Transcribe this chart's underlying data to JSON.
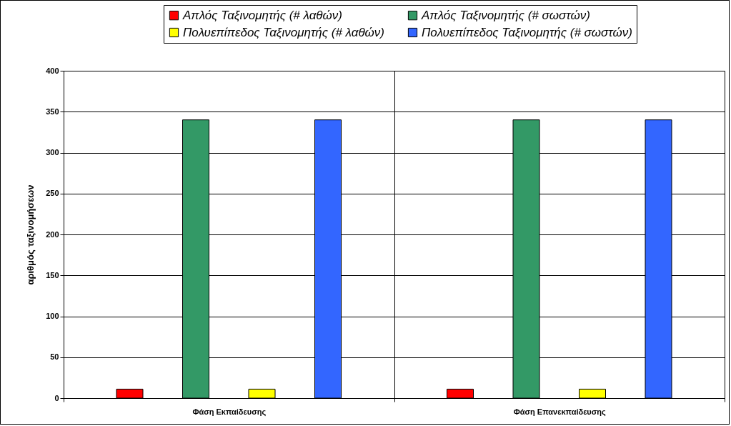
{
  "chart_data": {
    "type": "bar",
    "ylabel": "αριθμός ταξινομήσεων",
    "categories": [
      "Φάση Εκπαίδευσης",
      "Φάση Επανεκπαίδευσης"
    ],
    "series": [
      {
        "name": "Απλός Ταξινομητής (# λαθών)",
        "color": "#ff0000",
        "values": [
          11,
          11
        ]
      },
      {
        "name": "Απλός Ταξινομητής (# σωστών)",
        "color": "#339966",
        "values": [
          340,
          340
        ]
      },
      {
        "name": "Πολυεπίπεδος Ταξινομητής (# λαθών)",
        "color": "#ffff00",
        "values": [
          11,
          11
        ]
      },
      {
        "name": "Πολυεπίπεδος Ταξινομητής (# σωστών)",
        "color": "#3366ff",
        "values": [
          340,
          340
        ]
      }
    ],
    "ylim": [
      0,
      400
    ],
    "yticks": [
      0,
      50,
      100,
      150,
      200,
      250,
      300,
      350,
      400
    ],
    "grid": true,
    "legend": "top"
  }
}
